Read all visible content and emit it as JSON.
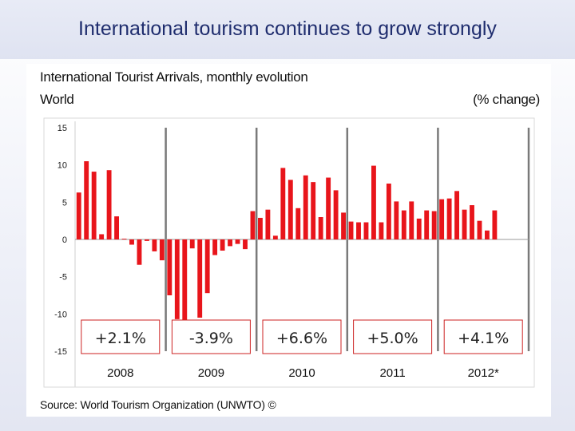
{
  "slide": {
    "title": "International tourism continues to grow strongly"
  },
  "chart_data": {
    "type": "bar",
    "title": "International Tourist Arrivals, monthly evolution",
    "region": "World",
    "unit": "(% change)",
    "ylim": [
      -15,
      15
    ],
    "yticks": [
      15,
      10,
      5,
      0,
      -5,
      -10,
      -15
    ],
    "years": [
      "2008",
      "2009",
      "2010",
      "2011",
      "2012*"
    ],
    "months_per_year": 12,
    "values": [
      6.3,
      10.5,
      9.1,
      0.7,
      9.3,
      3.1,
      0.1,
      -0.7,
      -3.4,
      -0.2,
      -1.6,
      -2.8,
      -7.5,
      -10.7,
      -12.2,
      -1.2,
      -10.5,
      -7.2,
      -2.1,
      -1.5,
      -0.9,
      -0.6,
      -1.3,
      3.8,
      2.9,
      4.0,
      0.5,
      9.6,
      8.0,
      4.2,
      8.6,
      7.7,
      3.0,
      8.3,
      6.6,
      3.6,
      2.4,
      2.3,
      2.3,
      9.9,
      2.3,
      7.5,
      5.1,
      3.9,
      5.1,
      2.8,
      3.9,
      3.8,
      5.4,
      5.5,
      6.5,
      4.0,
      4.6,
      2.5,
      1.2,
      3.9
    ],
    "growth_labels": [
      "+2.1%",
      "-3.9%",
      "+6.6%",
      "+5.0%",
      "+4.1%"
    ],
    "source": "Source: World Tourism Organization (UNWTO) ©",
    "colors": {
      "bar": "#e8151b",
      "divider": "#7a7a7a",
      "grid_zero": "#9a9a9a"
    }
  }
}
